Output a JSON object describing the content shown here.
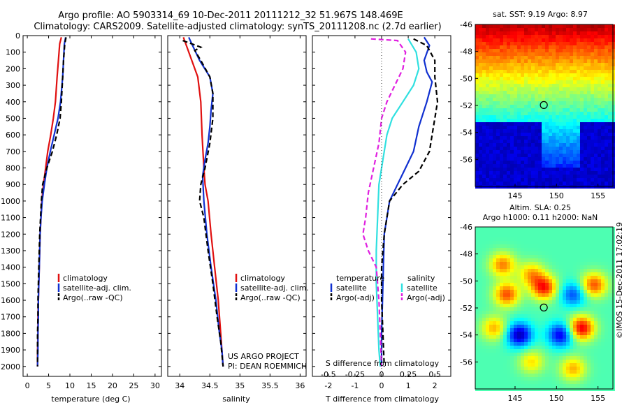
{
  "titles": {
    "line1": "Argo profile: AO 5903314_69 10-Dec-2011 20111212_32 51.967S 148.469E",
    "line2": "Climatology: CARS2009. Satellite-adjusted climatology: synTS_20111208.nc (2.7d earlier)"
  },
  "colors": {
    "climatology": "#e01010",
    "satellite": "#1030d0",
    "argo": "#000000",
    "sal_satellite": "#30e0e0",
    "sal_argo": "#e020e0"
  },
  "chart_data": [
    {
      "type": "line",
      "id": "temperature",
      "xlabel": "temperature (deg C)",
      "xlim": [
        -1,
        31.5
      ],
      "ylim": [
        0,
        2060
      ],
      "y_reversed": true,
      "xticks": [
        0,
        5,
        10,
        15,
        20,
        25,
        30
      ],
      "yticks": [
        0,
        100,
        200,
        300,
        400,
        500,
        600,
        700,
        800,
        900,
        1000,
        1100,
        1200,
        1300,
        1400,
        1500,
        1600,
        1700,
        1800,
        1900,
        2000
      ],
      "legend": [
        "climatology",
        "satellite-adj. clim.",
        "Argo(..raw -QC)"
      ],
      "series": [
        {
          "name": "climatology",
          "style": "solid",
          "color": "#e01010",
          "points": [
            [
              8.0,
              10
            ],
            [
              7.6,
              50
            ],
            [
              7.3,
              150
            ],
            [
              7.0,
              250
            ],
            [
              6.6,
              400
            ],
            [
              6.1,
              500
            ],
            [
              5.5,
              600
            ],
            [
              4.8,
              700
            ],
            [
              4.3,
              800
            ],
            [
              3.8,
              900
            ],
            [
              3.4,
              1000
            ],
            [
              3.2,
              1100
            ],
            [
              3.0,
              1200
            ],
            [
              2.9,
              1300
            ],
            [
              2.8,
              1400
            ],
            [
              2.7,
              1500
            ],
            [
              2.6,
              1600
            ],
            [
              2.5,
              1700
            ],
            [
              2.5,
              1800
            ],
            [
              2.4,
              1900
            ],
            [
              2.4,
              2000
            ]
          ]
        },
        {
          "name": "satellite-adj. clim.",
          "style": "solid",
          "color": "#1030d0",
          "points": [
            [
              9.0,
              10
            ],
            [
              8.7,
              50
            ],
            [
              8.5,
              150
            ],
            [
              8.3,
              250
            ],
            [
              7.8,
              400
            ],
            [
              7.2,
              500
            ],
            [
              6.3,
              600
            ],
            [
              5.4,
              700
            ],
            [
              4.6,
              800
            ],
            [
              4.0,
              900
            ],
            [
              3.5,
              1000
            ],
            [
              3.2,
              1100
            ],
            [
              3.0,
              1200
            ],
            [
              2.9,
              1300
            ],
            [
              2.8,
              1400
            ],
            [
              2.7,
              1500
            ],
            [
              2.6,
              1600
            ],
            [
              2.6,
              1700
            ],
            [
              2.5,
              1800
            ],
            [
              2.5,
              1900
            ],
            [
              2.4,
              2000
            ]
          ]
        },
        {
          "name": "Argo(..raw -QC)",
          "style": "dashed",
          "color": "#000000",
          "points": [
            [
              9.1,
              10
            ],
            [
              8.8,
              50
            ],
            [
              8.5,
              150
            ],
            [
              8.3,
              250
            ],
            [
              8.0,
              400
            ],
            [
              7.7,
              500
            ],
            [
              6.9,
              600
            ],
            [
              5.9,
              700
            ],
            [
              4.6,
              800
            ],
            [
              3.6,
              900
            ],
            [
              3.3,
              1000
            ],
            [
              3.1,
              1100
            ],
            [
              2.9,
              1200
            ],
            [
              2.8,
              1300
            ],
            [
              2.7,
              1400
            ],
            [
              2.6,
              1500
            ],
            [
              2.5,
              1600
            ],
            [
              2.5,
              1700
            ],
            [
              2.4,
              1800
            ],
            [
              2.4,
              1900
            ],
            [
              2.4,
              2000
            ]
          ]
        }
      ]
    },
    {
      "type": "line",
      "id": "salinity",
      "xlabel": "salinity",
      "xlim": [
        33.8,
        36.1
      ],
      "ylim": [
        0,
        2060
      ],
      "y_reversed": true,
      "xticks": [
        34,
        34.5,
        35,
        35.5,
        36
      ],
      "legend": [
        "climatology",
        "satellite-adj. clim.",
        "Argo(..raw -QC)"
      ],
      "series": [
        {
          "name": "climatology",
          "style": "solid",
          "color": "#e01010",
          "points": [
            [
              34.06,
              10
            ],
            [
              34.1,
              50
            ],
            [
              34.2,
              150
            ],
            [
              34.3,
              250
            ],
            [
              34.35,
              400
            ],
            [
              34.37,
              600
            ],
            [
              34.4,
              800
            ],
            [
              34.42,
              900
            ],
            [
              34.47,
              1000
            ],
            [
              34.52,
              1200
            ],
            [
              34.58,
              1400
            ],
            [
              34.64,
              1600
            ],
            [
              34.68,
              1800
            ],
            [
              34.7,
              1900
            ],
            [
              34.72,
              2000
            ]
          ]
        },
        {
          "name": "satellite-adj. clim.",
          "style": "solid",
          "color": "#1030d0",
          "points": [
            [
              34.15,
              10
            ],
            [
              34.2,
              50
            ],
            [
              34.33,
              150
            ],
            [
              34.5,
              250
            ],
            [
              34.55,
              350
            ],
            [
              34.52,
              450
            ],
            [
              34.5,
              550
            ],
            [
              34.47,
              650
            ],
            [
              34.42,
              750
            ],
            [
              34.38,
              850
            ],
            [
              34.4,
              1000
            ],
            [
              34.45,
              1200
            ],
            [
              34.52,
              1400
            ],
            [
              34.6,
              1600
            ],
            [
              34.66,
              1800
            ],
            [
              34.7,
              1900
            ],
            [
              34.72,
              2000
            ]
          ]
        },
        {
          "name": "Argo(..raw -QC)",
          "style": "dashed",
          "color": "#000000",
          "points": [
            [
              34.05,
              30
            ],
            [
              34.2,
              50
            ],
            [
              34.35,
              70
            ],
            [
              34.25,
              90
            ],
            [
              34.35,
              150
            ],
            [
              34.5,
              250
            ],
            [
              34.55,
              350
            ],
            [
              34.55,
              500
            ],
            [
              34.5,
              650
            ],
            [
              34.42,
              800
            ],
            [
              34.35,
              900
            ],
            [
              34.33,
              1000
            ],
            [
              34.4,
              1100
            ],
            [
              34.47,
              1300
            ],
            [
              34.55,
              1500
            ],
            [
              34.62,
              1700
            ],
            [
              34.68,
              1850
            ],
            [
              34.72,
              2000
            ]
          ]
        }
      ]
    },
    {
      "type": "line",
      "id": "difference",
      "xlabel": "T difference from climatology",
      "xlabel2": "S difference from climatology",
      "xlim": [
        -2.6,
        2.6
      ],
      "ylim": [
        0,
        2060
      ],
      "y_reversed": true,
      "xticks": [
        -2,
        -1,
        0,
        1,
        2
      ],
      "xticks_s": [
        "-0.5",
        "-0.25",
        "0",
        "0.25",
        "0.5"
      ],
      "legend_t_header": "temperature",
      "legend_s_header": "salinity",
      "legend": [
        "satellite",
        "Argo(-adj)",
        "satellite",
        "Argo(-adj)"
      ],
      "series": [
        {
          "name": "T satellite",
          "style": "solid",
          "color": "#1030d0",
          "points": [
            [
              1.6,
              10
            ],
            [
              1.8,
              60
            ],
            [
              1.6,
              150
            ],
            [
              1.7,
              220
            ],
            [
              1.9,
              280
            ],
            [
              1.7,
              400
            ],
            [
              1.4,
              550
            ],
            [
              1.2,
              700
            ],
            [
              0.9,
              800
            ],
            [
              0.6,
              900
            ],
            [
              0.3,
              1000
            ],
            [
              0.1,
              1200
            ],
            [
              0.05,
              1500
            ],
            [
              0.0,
              1800
            ],
            [
              0.0,
              2000
            ]
          ]
        },
        {
          "name": "T Argo(-adj)",
          "style": "dashed",
          "color": "#000000",
          "points": [
            [
              1.2,
              20
            ],
            [
              1.7,
              60
            ],
            [
              2.0,
              150
            ],
            [
              2.0,
              250
            ],
            [
              2.1,
              400
            ],
            [
              2.0,
              500
            ],
            [
              1.9,
              600
            ],
            [
              1.8,
              700
            ],
            [
              1.4,
              820
            ],
            [
              0.8,
              900
            ],
            [
              0.3,
              1000
            ],
            [
              0.2,
              1100
            ],
            [
              0.1,
              1200
            ],
            [
              0.0,
              1400
            ],
            [
              0.0,
              1600
            ],
            [
              0.05,
              1800
            ],
            [
              0.1,
              2000
            ]
          ]
        },
        {
          "name": "S satellite",
          "style": "solid",
          "color": "#30e0e0",
          "points": [
            [
              1.0,
              20
            ],
            [
              1.3,
              100
            ],
            [
              1.4,
              200
            ],
            [
              1.2,
              300
            ],
            [
              0.8,
              400
            ],
            [
              0.4,
              500
            ],
            [
              0.2,
              600
            ],
            [
              0.1,
              700
            ],
            [
              0.0,
              800
            ],
            [
              -0.1,
              900
            ],
            [
              -0.15,
              1100
            ],
            [
              -0.2,
              1300
            ],
            [
              -0.2,
              1500
            ],
            [
              -0.15,
              1700
            ],
            [
              -0.1,
              1900
            ],
            [
              -0.05,
              2000
            ]
          ]
        },
        {
          "name": "S Argo(-adj)",
          "style": "dashed",
          "color": "#e020e0",
          "points": [
            [
              -0.4,
              20
            ],
            [
              0.6,
              30
            ],
            [
              0.9,
              100
            ],
            [
              0.8,
              200
            ],
            [
              0.5,
              300
            ],
            [
              0.2,
              400
            ],
            [
              0.0,
              500
            ],
            [
              -0.1,
              650
            ],
            [
              -0.3,
              800
            ],
            [
              -0.5,
              950
            ],
            [
              -0.6,
              1100
            ],
            [
              -0.7,
              1200
            ],
            [
              -0.5,
              1300
            ],
            [
              -0.2,
              1400
            ],
            [
              -0.1,
              1600
            ],
            [
              -0.05,
              1800
            ],
            [
              0.0,
              2000
            ]
          ]
        }
      ]
    },
    {
      "type": "heatmap",
      "id": "sst_map",
      "title": "sat. SST: 9.19 Argo: 8.97",
      "xticks": [
        145,
        150,
        155
      ],
      "yticks": [
        -46,
        -48,
        -50,
        -52,
        -54,
        -56
      ],
      "xlim": [
        140.2,
        156.8
      ],
      "ylim": [
        -58,
        -46
      ],
      "marker": {
        "lon": 148.469,
        "lat": -51.967
      }
    },
    {
      "type": "heatmap",
      "id": "sla_map",
      "title": "Altim. SLA: 0.25",
      "subtitle": "Argo h1000: 0.11 h2000: NaN",
      "xticks": [
        145,
        150,
        155
      ],
      "yticks": [
        -46,
        -48,
        -50,
        -52,
        -54,
        -56
      ],
      "xlim": [
        140.2,
        156.8
      ],
      "ylim": [
        -58,
        -46
      ],
      "marker": {
        "lon": 148.469,
        "lat": -51.967
      }
    }
  ],
  "panels": {
    "temp": {
      "legend": [
        "climatology",
        "satellite-adj. clim.",
        "Argo(..raw -QC)"
      ]
    },
    "sal": {
      "legend": [
        "climatology",
        "satellite-adj. clim.",
        "Argo(..raw -QC)"
      ],
      "credit1": "US ARGO PROJECT",
      "credit2": "PI: DEAN ROEMMICH"
    },
    "diff": {
      "leg_t_header": "temperature",
      "leg_s_header": "salinity",
      "leg_t_sat": "satellite",
      "leg_t_argo": "Argo(-adj)",
      "leg_s_sat": "satellite",
      "leg_s_argo": "Argo(-adj)"
    }
  },
  "watermark": "©IMOS 15-Dec-2011 17:02:19"
}
